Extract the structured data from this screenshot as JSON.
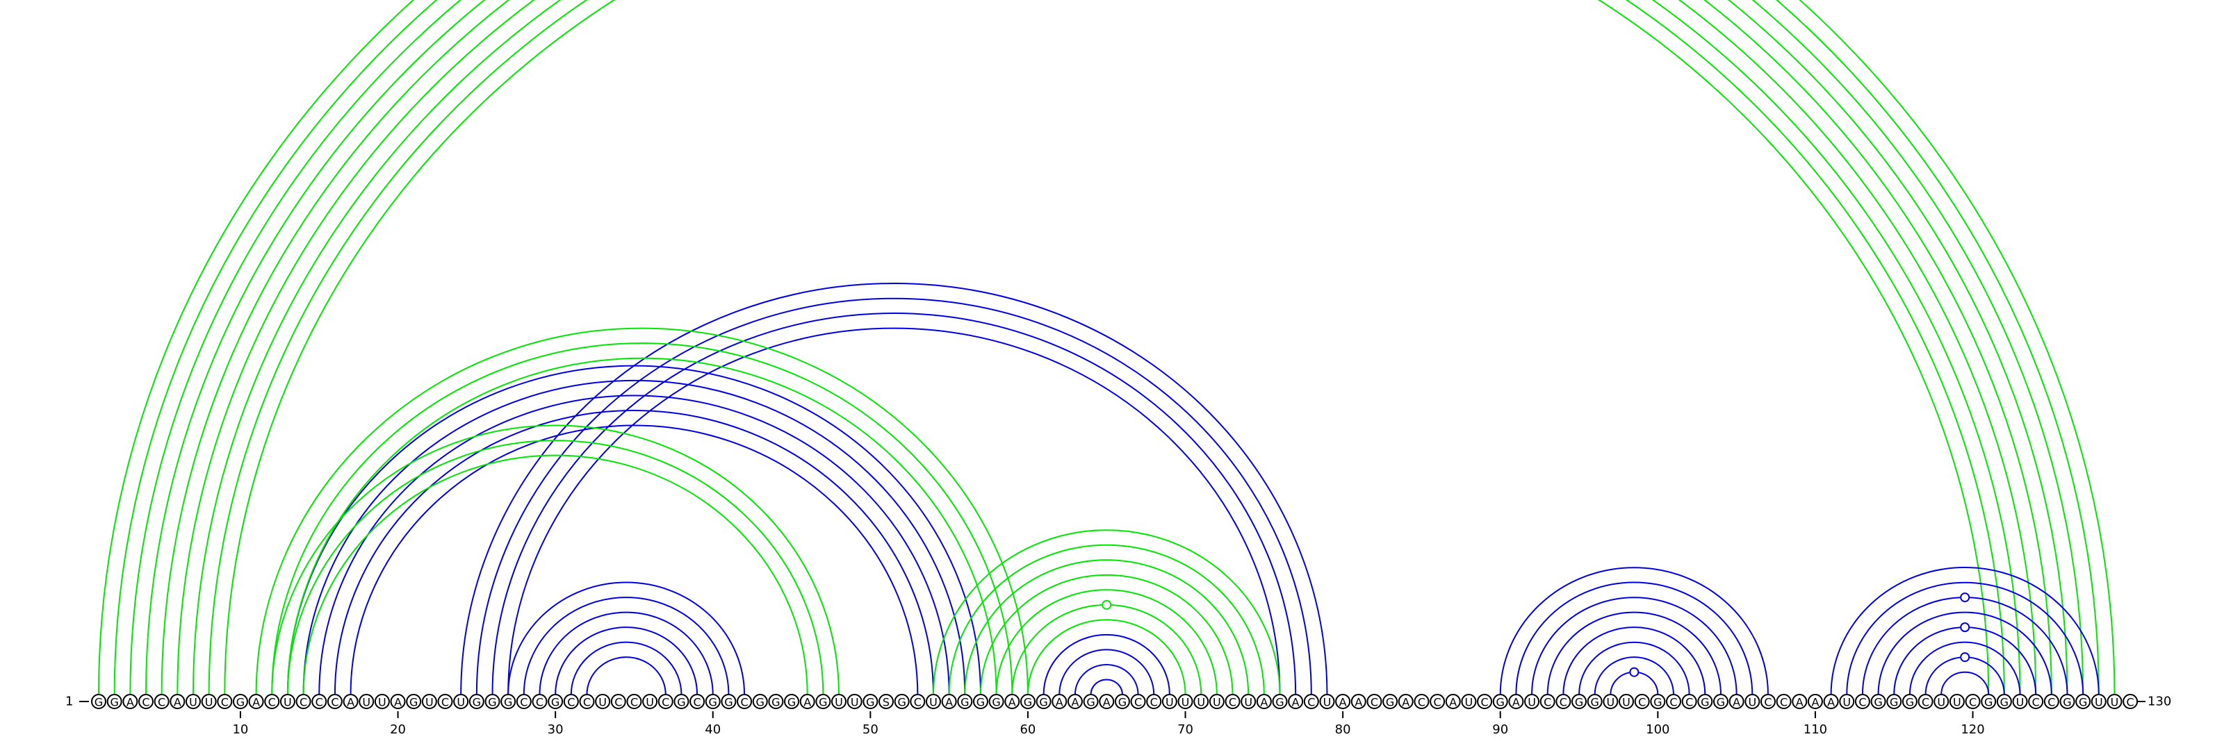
{
  "sequence": "GGACCAUUCGACUCCCAUUAGUCUGGGCCGCCUCCUCGCGGCGGGAGUUGSGCUAGGGAGGAAGAGCCUUUUCUAGACUAACGACCAUCGAUCCGGUUCGCCGGAUCCAAAUCGGGCUUCGGUCCGGUUC",
  "labels": {
    "start_label": "1",
    "end_label": "130",
    "ticks": [
      "10",
      "20",
      "30",
      "40",
      "50",
      "60",
      "70",
      "80",
      "90",
      "100",
      "110",
      "120"
    ]
  },
  "colors": {
    "structure_a": "#0000e0",
    "structure_b": "#00e600",
    "outline": "#000000"
  },
  "arc_sets": [
    {
      "color_key": "structure_b",
      "pairs": [
        [
          1,
          129
        ],
        [
          2,
          128
        ],
        [
          3,
          127
        ],
        [
          4,
          126
        ],
        [
          5,
          125
        ],
        [
          6,
          124
        ],
        [
          7,
          123
        ],
        [
          8,
          122
        ],
        [
          9,
          121
        ]
      ],
      "markers": [
        [
          1,
          129
        ]
      ]
    },
    {
      "color_key": "structure_a",
      "pairs": [
        [
          13,
          57
        ],
        [
          14,
          56
        ],
        [
          15,
          55
        ],
        [
          16,
          54
        ],
        [
          17,
          53
        ],
        [
          24,
          79
        ],
        [
          25,
          78
        ],
        [
          26,
          77
        ],
        [
          27,
          76
        ]
      ],
      "markers": []
    },
    {
      "color_key": "structure_b",
      "pairs": [
        [
          11,
          60
        ],
        [
          12,
          59
        ],
        [
          13,
          58
        ],
        [
          12,
          48
        ],
        [
          13,
          47
        ],
        [
          14,
          46
        ]
      ],
      "markers": []
    },
    {
      "color_key": "structure_a",
      "pairs": [
        [
          27,
          42
        ],
        [
          28,
          41
        ],
        [
          29,
          40
        ],
        [
          30,
          39
        ],
        [
          31,
          38
        ],
        [
          32,
          37
        ]
      ],
      "markers": []
    },
    {
      "color_key": "structure_b",
      "pairs": [
        [
          54,
          76
        ],
        [
          55,
          75
        ],
        [
          56,
          74
        ],
        [
          57,
          73
        ],
        [
          58,
          72
        ],
        [
          59,
          71
        ],
        [
          60,
          70
        ]
      ],
      "markers": [
        [
          59,
          71
        ]
      ]
    },
    {
      "color_key": "structure_a",
      "pairs": [
        [
          61,
          69
        ],
        [
          62,
          68
        ],
        [
          63,
          67
        ],
        [
          64,
          66
        ]
      ],
      "markers": []
    },
    {
      "color_key": "structure_a",
      "pairs": [
        [
          90,
          107
        ],
        [
          91,
          106
        ],
        [
          92,
          105
        ],
        [
          93,
          104
        ],
        [
          94,
          103
        ],
        [
          95,
          102
        ],
        [
          96,
          101
        ],
        [
          97,
          100
        ]
      ],
      "markers": [
        [
          97,
          100
        ]
      ]
    },
    {
      "color_key": "structure_a",
      "pairs": [
        [
          111,
          128
        ],
        [
          112,
          127
        ],
        [
          113,
          126
        ],
        [
          114,
          125
        ],
        [
          115,
          124
        ],
        [
          116,
          123
        ],
        [
          117,
          122
        ],
        [
          118,
          121
        ]
      ],
      "markers": [
        [
          113,
          126
        ],
        [
          115,
          124
        ],
        [
          117,
          122
        ]
      ]
    }
  ]
}
